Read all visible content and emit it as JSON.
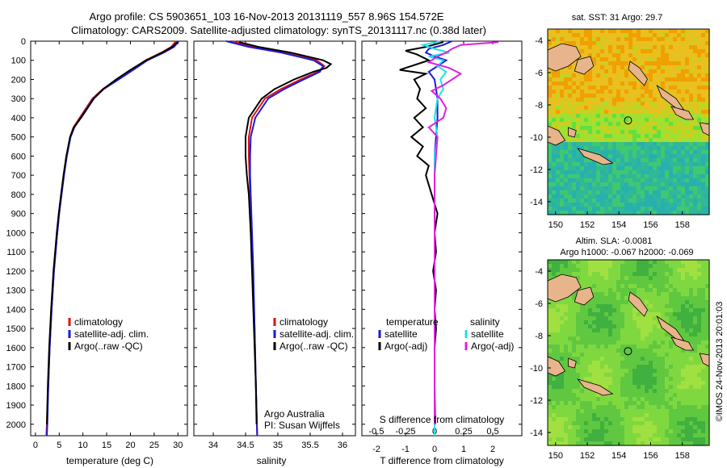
{
  "header": {
    "title_line1": "Argo profile: CS 5903651_103 16-Nov-2013 20131119_557 8.96S 154.572E",
    "title_line2": "Climatology: CARS2009. Satellite-adjusted climatology: synTS_20131117.nc (0.38d later)"
  },
  "watermark": "©IMOS 24-Nov-2013 20:01:03",
  "colors": {
    "climatology": "#e01010",
    "satellite": "#1a1ae0",
    "argo": "#000000",
    "sat_salinity": "#20e0e8",
    "argo_salinity": "#e020e0",
    "land": "#e8b48c"
  },
  "chart_data": [
    {
      "id": "temperature",
      "type": "line",
      "xlabel": "temperature (deg C)",
      "ylabel": "",
      "xlim": [
        -1,
        32
      ],
      "ylim": [
        2060,
        0
      ],
      "xticks": [
        0,
        5,
        10,
        15,
        20,
        25,
        30
      ],
      "yticks": [
        0,
        100,
        200,
        300,
        400,
        500,
        600,
        700,
        800,
        900,
        1000,
        1100,
        1200,
        1300,
        1400,
        1500,
        1600,
        1700,
        1800,
        1900,
        2000
      ],
      "legend": [
        "climatology",
        "satellite-adj. clim.",
        "Argo(..raw -QC)"
      ],
      "series": [
        {
          "name": "climatology",
          "color": "#e01010",
          "depth": [
            0,
            30,
            60,
            100,
            150,
            200,
            250,
            300,
            400,
            450,
            500,
            600,
            700,
            800,
            900,
            1000,
            1200,
            1400,
            1600,
            1800,
            2000,
            2060
          ],
          "values": [
            29.6,
            28.6,
            26.5,
            23.2,
            20.2,
            17.2,
            14.2,
            12.0,
            9.3,
            8.0,
            7.3,
            6.6,
            6.0,
            5.5,
            5.0,
            4.6,
            3.9,
            3.4,
            3.0,
            2.7,
            2.4,
            2.3
          ]
        },
        {
          "name": "satellite-adj. clim.",
          "color": "#1a1ae0",
          "depth": [
            0,
            30,
            60,
            100,
            150,
            200,
            250,
            300,
            400,
            450,
            500,
            600,
            700,
            800,
            900,
            1000,
            1200,
            1400,
            1600,
            1800,
            2000,
            2060
          ],
          "values": [
            30.2,
            29.2,
            27.0,
            23.6,
            20.6,
            17.5,
            14.4,
            12.2,
            9.5,
            8.2,
            7.4,
            6.6,
            6.0,
            5.5,
            5.0,
            4.6,
            3.9,
            3.4,
            3.0,
            2.7,
            2.5,
            2.4
          ]
        },
        {
          "name": "Argo(..raw -QC)",
          "color": "#000000",
          "depth": [
            5,
            30,
            60,
            100,
            150,
            200,
            250,
            300,
            400,
            450,
            500,
            600,
            700,
            800,
            900,
            1000,
            1200,
            1400,
            1600,
            1800,
            2000
          ],
          "values": [
            29.9,
            28.8,
            26.7,
            23.3,
            20.0,
            17.0,
            14.3,
            12.3,
            9.6,
            8.1,
            7.3,
            6.5,
            5.9,
            5.4,
            4.9,
            4.5,
            3.8,
            3.3,
            2.9,
            2.6,
            2.4
          ]
        }
      ]
    },
    {
      "id": "salinity",
      "type": "line",
      "xlabel": "salinity",
      "xlim": [
        33.7,
        36.2
      ],
      "ylim": [
        2060,
        0
      ],
      "xticks": [
        34,
        34.5,
        35,
        35.5,
        36
      ],
      "legend": [
        "climatology",
        "satellite-adj. clim.",
        "Argo(..raw -QC)"
      ],
      "annotation_line1": "Argo Australia",
      "annotation_line2": "PI: Susan Wijffels",
      "series": [
        {
          "name": "climatology",
          "color": "#e01010",
          "depth": [
            0,
            30,
            60,
            100,
            130,
            160,
            200,
            250,
            300,
            400,
            500,
            600,
            700,
            800,
            1000,
            1200,
            1500,
            1800,
            2060
          ],
          "values": [
            34.3,
            34.6,
            35.1,
            35.6,
            35.72,
            35.62,
            35.35,
            35.05,
            34.8,
            34.6,
            34.55,
            34.55,
            34.56,
            34.57,
            34.59,
            34.61,
            34.64,
            34.66,
            34.68
          ]
        },
        {
          "name": "satellite-adj. clim.",
          "color": "#1a1ae0",
          "depth": [
            0,
            30,
            60,
            100,
            130,
            160,
            200,
            250,
            300,
            400,
            500,
            600,
            700,
            800,
            1000,
            1200,
            1500,
            1800,
            2060
          ],
          "values": [
            34.2,
            34.55,
            35.05,
            35.55,
            35.7,
            35.65,
            35.4,
            35.1,
            34.85,
            34.65,
            34.58,
            34.57,
            34.57,
            34.58,
            34.6,
            34.62,
            34.64,
            34.66,
            34.68
          ]
        },
        {
          "name": "Argo(..raw -QC)",
          "color": "#000000",
          "depth": [
            5,
            30,
            60,
            100,
            120,
            140,
            160,
            200,
            250,
            300,
            400,
            500,
            600,
            700,
            800,
            1000,
            1200,
            1500,
            1800,
            2000
          ],
          "values": [
            34.4,
            34.7,
            35.2,
            35.7,
            35.82,
            35.75,
            35.55,
            35.25,
            34.95,
            34.75,
            34.55,
            34.5,
            34.5,
            34.52,
            34.55,
            34.58,
            34.6,
            34.63,
            34.66,
            34.67
          ]
        }
      ]
    },
    {
      "id": "difference",
      "type": "line",
      "xlabel": "T difference from climatology",
      "toplabel": "S difference from climatology",
      "xlim": [
        -2.5,
        3.0
      ],
      "ylim": [
        2060,
        0
      ],
      "xticks": [
        -2,
        -1,
        0,
        1,
        2
      ],
      "sticks_pos": [
        -2,
        -1,
        0,
        1,
        2
      ],
      "sticks": [
        "-0.5",
        "-0.25",
        "0",
        "0.25",
        "0.5"
      ],
      "legend_temp": [
        "temperature",
        "satellite",
        "Argo(-adj)"
      ],
      "legend_sal": [
        "salinity",
        "satellite",
        "Argo(-adj)"
      ],
      "series": [
        {
          "name": "T satellite",
          "color": "#1a1ae0",
          "depth": [
            0,
            20,
            40,
            60,
            80,
            100,
            130,
            160,
            200,
            300,
            400,
            600,
            800,
            1000,
            1200,
            1500,
            1800,
            2060
          ],
          "values": [
            0.6,
            0.3,
            -0.2,
            -0.3,
            0.0,
            0.4,
            0.1,
            -0.2,
            0.0,
            0.1,
            0.1,
            0.0,
            0.0,
            0.0,
            0.0,
            0.0,
            0.0,
            0.0
          ]
        },
        {
          "name": "T Argo(-adj)",
          "color": "#000000",
          "depth": [
            5,
            30,
            50,
            70,
            100,
            120,
            150,
            170,
            200,
            250,
            300,
            350,
            400,
            450,
            500,
            550,
            600,
            650,
            700,
            800,
            900,
            1000,
            1100,
            1200,
            1300,
            1400,
            1500,
            1600,
            1800,
            2000
          ],
          "values": [
            0.3,
            -0.3,
            -1.0,
            -0.6,
            -0.2,
            -0.6,
            -1.2,
            -0.3,
            -0.7,
            -0.5,
            -0.6,
            -0.3,
            -0.7,
            -0.4,
            -0.8,
            -0.4,
            -0.6,
            -0.2,
            -0.3,
            -0.1,
            0.1,
            0.0,
            0.05,
            -0.05,
            0.05,
            0.0,
            0.05,
            0.0,
            0.0,
            0.02
          ]
        },
        {
          "name": "S satellite",
          "color": "#20e0e8",
          "depth": [
            0,
            20,
            40,
            60,
            80,
            100,
            130,
            160,
            200,
            250,
            300,
            400,
            500,
            600,
            800,
            1000,
            1500,
            2060
          ],
          "values": [
            0.2,
            -0.4,
            0.0,
            0.5,
            -0.2,
            0.3,
            0.1,
            0.4,
            0.2,
            0.3,
            0.1,
            0.0,
            0.1,
            0.0,
            0.0,
            0.0,
            0.0,
            0.0
          ]
        },
        {
          "name": "S Argo(-adj)",
          "color": "#e020e0",
          "depth": [
            5,
            20,
            40,
            60,
            80,
            110,
            140,
            170,
            200,
            230,
            260,
            300,
            350,
            400,
            450,
            500,
            600,
            700,
            800,
            900,
            1000,
            1200,
            1500,
            1800,
            2000
          ],
          "values": [
            2.2,
            0.9,
            0.6,
            0.4,
            0.1,
            -0.2,
            0.5,
            0.9,
            0.6,
            0.3,
            -0.1,
            0.2,
            0.4,
            0.3,
            -0.2,
            0.1,
            0.05,
            0.0,
            0.0,
            0.0,
            0.0,
            0.0,
            0.0,
            0.0,
            0.0
          ]
        }
      ]
    },
    {
      "id": "sst_map",
      "type": "heatmap",
      "title": "sat. SST: 31 Argo: 29.7",
      "xlim": [
        149.5,
        159.7
      ],
      "ylim": [
        -14.8,
        -3.3
      ],
      "xticks": [
        150,
        152,
        154,
        156,
        158
      ],
      "yticks": [
        -4,
        -6,
        -8,
        -10,
        -12,
        -14
      ],
      "argo_position": [
        154.572,
        -8.96
      ],
      "colorscale": [
        "#f0a000",
        "#e8c020",
        "#c8d020",
        "#a0e030",
        "#60e040",
        "#40c870",
        "#30b898",
        "#28b0b0"
      ]
    },
    {
      "id": "sla_map",
      "type": "heatmap",
      "title_line1": "Altim. SLA: -0.0081",
      "title_line2": "Argo h1000: -0.067 h2000: -0.069",
      "xlim": [
        149.5,
        159.7
      ],
      "ylim": [
        -14.8,
        -3.3
      ],
      "xticks": [
        150,
        152,
        154,
        156,
        158
      ],
      "yticks": [
        -4,
        -6,
        -8,
        -10,
        -12,
        -14
      ],
      "argo_position": [
        154.572,
        -8.96
      ],
      "colorscale": [
        "#40b040",
        "#60c840",
        "#80d840",
        "#a0e040",
        "#c0e040"
      ]
    }
  ]
}
